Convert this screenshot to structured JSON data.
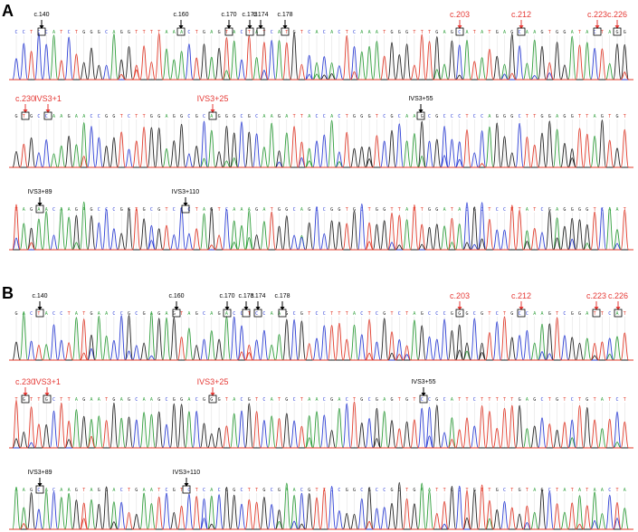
{
  "panels": [
    {
      "letter": "A",
      "rows": [
        {
          "markers": [
            {
              "label": "c.140",
              "color": "#000000"
            },
            {
              "label": "c.160",
              "color": "#000000"
            },
            {
              "label": "c.170",
              "color": "#000000"
            },
            {
              "label": "c.173",
              "color": "#000000"
            },
            {
              "label": "c.174",
              "color": "#000000"
            },
            {
              "label": "c.178",
              "color": "#000000"
            },
            {
              "label": "c.203",
              "color": "#e53935"
            },
            {
              "label": "c.212",
              "color": "#e53935"
            },
            {
              "label": "c.223",
              "color": "#e53935"
            },
            {
              "label": "c.226",
              "color": "#e53935"
            }
          ]
        },
        {
          "markers": [
            {
              "label": "c.230",
              "color": "#e53935"
            },
            {
              "label": "IVS3+1",
              "color": "#e53935"
            },
            {
              "label": "IVS3+25",
              "color": "#e53935"
            },
            {
              "label": "IVS3+55",
              "color": "#000000"
            }
          ]
        },
        {
          "markers": [
            {
              "label": "IVS3+89",
              "color": "#000000"
            },
            {
              "label": "IVS3+110",
              "color": "#000000"
            }
          ]
        }
      ]
    },
    {
      "letter": "B",
      "rows": [
        {
          "markers": [
            {
              "label": "c.140",
              "color": "#000000"
            },
            {
              "label": "c.160",
              "color": "#000000"
            },
            {
              "label": "c.170",
              "color": "#000000"
            },
            {
              "label": "c.173",
              "color": "#000000"
            },
            {
              "label": "c.174",
              "color": "#000000"
            },
            {
              "label": "c.178",
              "color": "#000000"
            },
            {
              "label": "c.203",
              "color": "#e53935"
            },
            {
              "label": "c.212",
              "color": "#e53935"
            },
            {
              "label": "c.223",
              "color": "#e53935"
            },
            {
              "label": "c.226",
              "color": "#e53935"
            }
          ]
        },
        {
          "markers": [
            {
              "label": "c.230",
              "color": "#e53935"
            },
            {
              "label": "IVS3+1",
              "color": "#e53935"
            },
            {
              "label": "IVS3+25",
              "color": "#e53935"
            },
            {
              "label": "IVS3+55",
              "color": "#000000"
            }
          ]
        },
        {
          "markers": [
            {
              "label": "IVS3+89",
              "color": "#000000"
            },
            {
              "label": "IVS3+110",
              "color": "#000000"
            }
          ]
        }
      ]
    }
  ],
  "base_colors": {
    "A": "#2e9e3a",
    "C": "#2d3fd6",
    "G": "#222222",
    "T": "#e23a2a"
  }
}
